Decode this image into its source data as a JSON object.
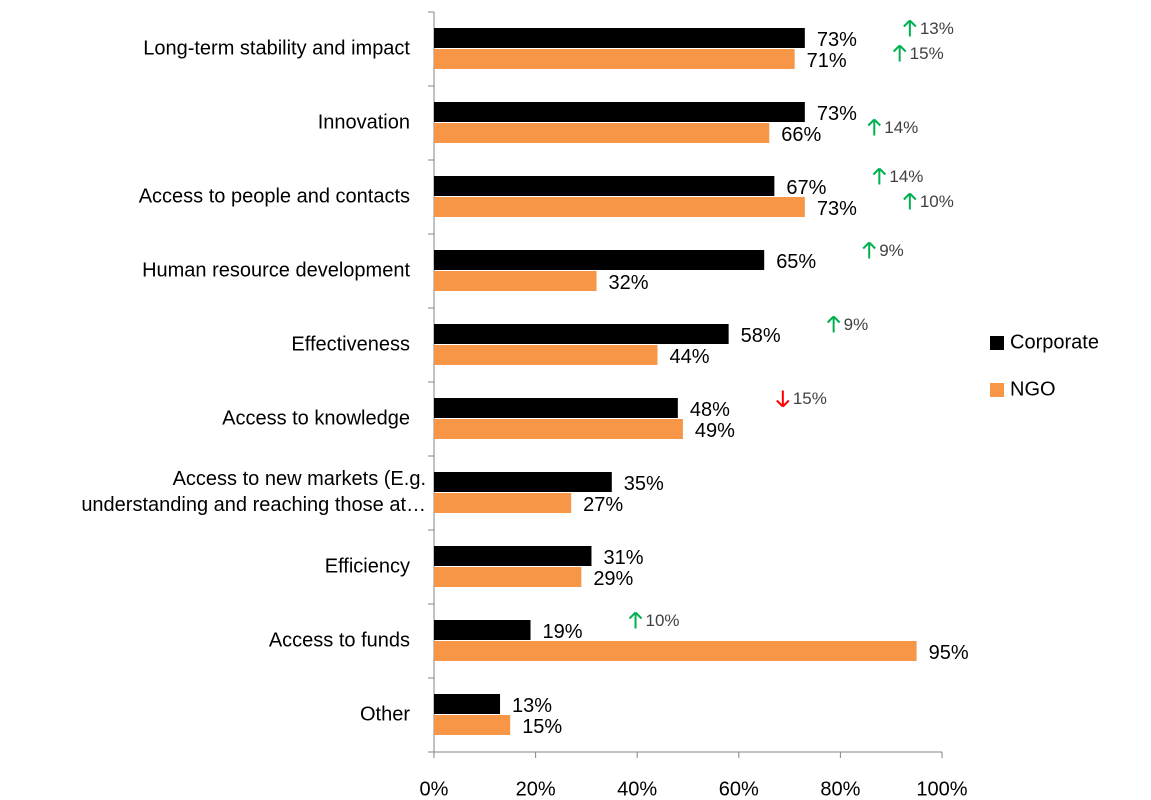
{
  "chart_data": {
    "type": "bar",
    "orientation": "horizontal",
    "categories": [
      "Long-term stability and impact",
      "Innovation",
      "Access to people and contacts",
      "Human resource development",
      "Effectiveness",
      "Access to knowledge",
      "Access to new markets (E.g.\nunderstanding and reaching those at…",
      "Efficiency",
      "Access to funds",
      "Other"
    ],
    "series": [
      {
        "name": "Corporate",
        "color": "#000000",
        "values": [
          73,
          73,
          67,
          65,
          58,
          48,
          35,
          31,
          19,
          13
        ],
        "value_labels": [
          "73%",
          "73%",
          "67%",
          "65%",
          "58%",
          "48%",
          "35%",
          "31%",
          "19%",
          "13%"
        ]
      },
      {
        "name": "NGO",
        "color": "#f79646",
        "values": [
          71,
          66,
          73,
          32,
          44,
          49,
          27,
          29,
          95,
          15
        ],
        "value_labels": [
          "71%",
          "66%",
          "73%",
          "32%",
          "44%",
          "49%",
          "27%",
          "29%",
          "95%",
          "15%"
        ]
      }
    ],
    "xlim": [
      0,
      100
    ],
    "xticks": [
      {
        "value": 0,
        "label": "0%"
      },
      {
        "value": 20,
        "label": "20%"
      },
      {
        "value": 40,
        "label": "40%"
      },
      {
        "value": 60,
        "label": "60%"
      },
      {
        "value": 80,
        "label": "80%"
      },
      {
        "value": 100,
        "label": "100%"
      }
    ],
    "grid": false,
    "legend": "right",
    "annotations": [
      {
        "category": 0,
        "series": 0,
        "direction": "up",
        "text": "13%"
      },
      {
        "category": 0,
        "series": 1,
        "direction": "up",
        "text": "15%"
      },
      {
        "category": 1,
        "series": 1,
        "direction": "up",
        "text": "14%"
      },
      {
        "category": 2,
        "series": 0,
        "direction": "up",
        "text": "14%"
      },
      {
        "category": 2,
        "series": 1,
        "direction": "up",
        "text": "10%"
      },
      {
        "category": 3,
        "series": 0,
        "direction": "up",
        "text": "9%"
      },
      {
        "category": 4,
        "series": 0,
        "direction": "up",
        "text": "9%"
      },
      {
        "category": 5,
        "series": 0,
        "direction": "down",
        "text": "15%"
      },
      {
        "category": 8,
        "series": 0,
        "direction": "up",
        "text": "10%"
      }
    ],
    "annotation_colors": {
      "up": "#00b050",
      "down": "#ff0000"
    }
  }
}
